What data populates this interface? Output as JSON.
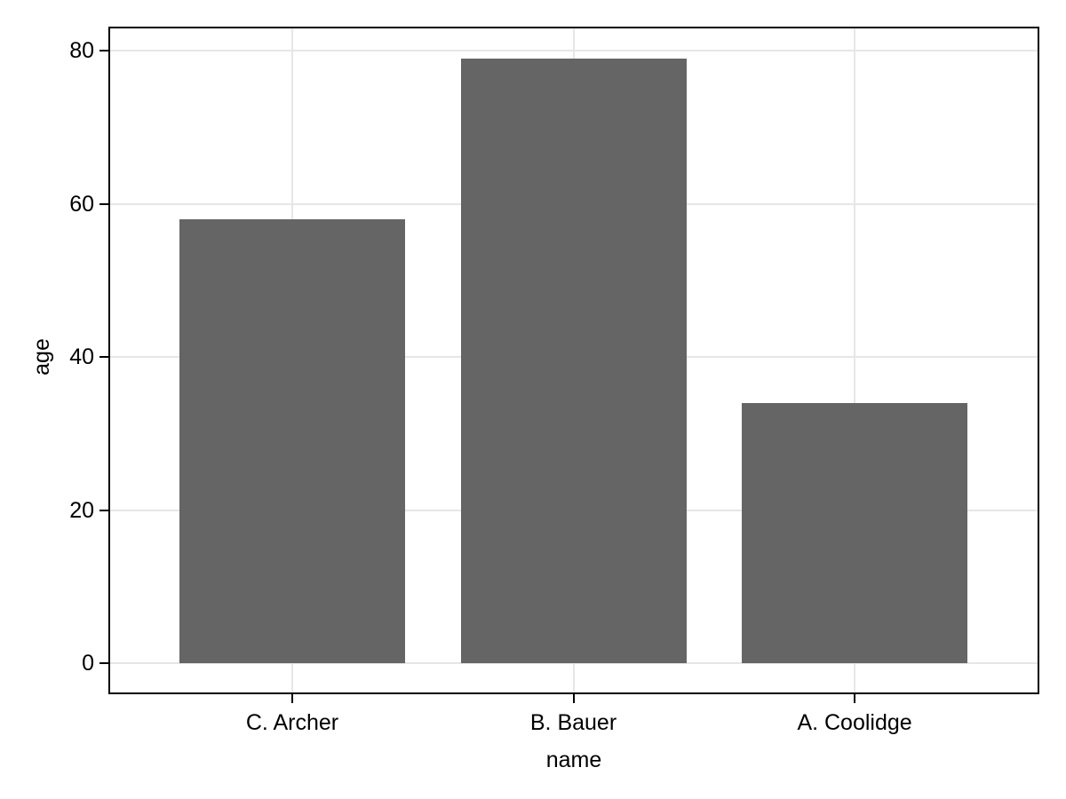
{
  "chart_data": {
    "type": "bar",
    "categories": [
      "C. Archer",
      "B. Bauer",
      "A. Coolidge"
    ],
    "values": [
      58,
      79,
      34
    ],
    "xlabel": "name",
    "ylabel": "age",
    "yticks": [
      0,
      20,
      40,
      60,
      80
    ],
    "ylim": [
      -3.8,
      82.9
    ],
    "grid": true,
    "legend": "none",
    "colors": {
      "bar": "#656565",
      "grid": "#e6e6e6",
      "frame": "#000000",
      "tick": "#000000",
      "text": "#000000",
      "background": "#ffffff"
    }
  }
}
